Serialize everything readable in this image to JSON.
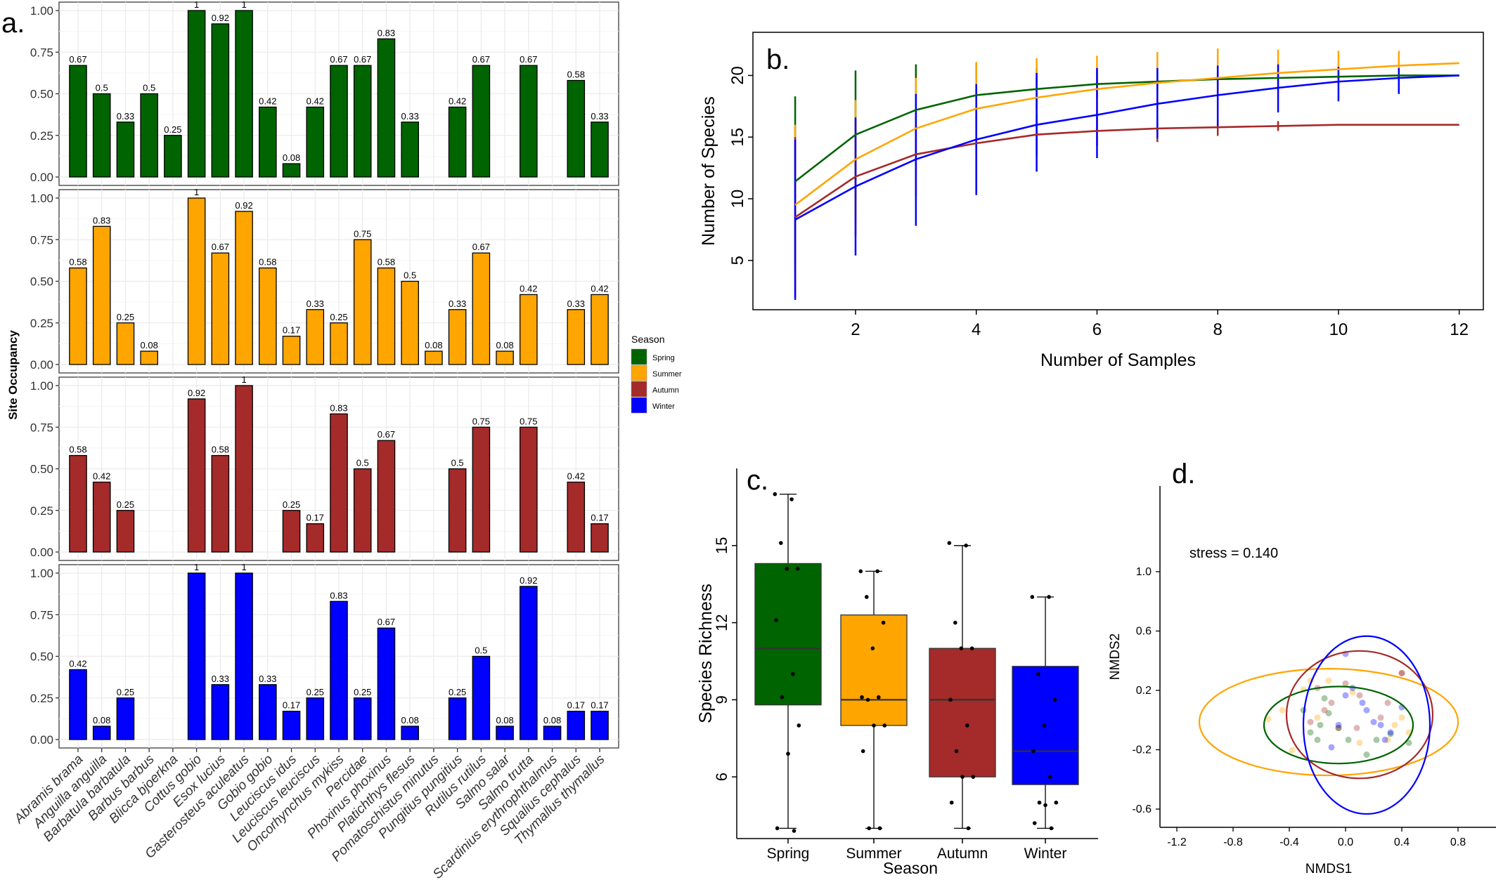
{
  "colors": {
    "spring": "#006400",
    "summer": "#FFA500",
    "autumn": "#A52A2A",
    "winter": "#0000FF",
    "panel_border": "#555555",
    "grid": "#ebebeb"
  },
  "chart_data": [
    {
      "type": "bar",
      "panel_label": "a.",
      "ylabel": "Site Occupancy",
      "ylim": [
        0,
        1
      ],
      "yticks": [
        "0.00",
        "0.25",
        "0.50",
        "0.75",
        "1.00"
      ],
      "categories": [
        "Abramis brama",
        "Anguilla anguilla",
        "Barbatula barbatula",
        "Barbus barbus",
        "Blicca bjoerkna",
        "Cottus gobio",
        "Esox lucius",
        "Gasterosteus aculeatus",
        "Gobio gobio",
        "Leuciscus idus",
        "Leuciscus leuciscus",
        "Oncorhynchus mykiss",
        "Percidae",
        "Phoxinus phoxinus",
        "Platichthys flesus",
        "Pomatoschistus minutus",
        "Pungitius pungitius",
        "Rutilus rutilus",
        "Salmo salar",
        "Salmo trutta",
        "Scardinius erythrophthalmus",
        "Squalius cephalus",
        "Thymallus thymallus"
      ],
      "legend_title": "Season",
      "legend": [
        "Spring",
        "Summer",
        "Autumn",
        "Winter"
      ],
      "legend_position": "right",
      "grid": true,
      "series": [
        {
          "name": "Spring",
          "values": [
            0.67,
            0.5,
            0.33,
            0.5,
            0.25,
            1,
            0.92,
            1,
            0.42,
            0.08,
            0.42,
            0.67,
            0.67,
            0.83,
            0.33,
            null,
            0.42,
            0.67,
            null,
            0.67,
            null,
            0.58,
            0.33
          ],
          "labels": [
            "0.67",
            "0.5",
            "0.33",
            "0.5",
            "0.25",
            "1",
            "0.92",
            "1",
            "0.42",
            "0.08",
            "0.42",
            "0.67",
            "0.67",
            "0.83",
            "0.33",
            "",
            "0.42",
            "0.67",
            "",
            "0.67",
            "",
            "0.58",
            "0.33"
          ]
        },
        {
          "name": "Summer",
          "values": [
            0.58,
            0.83,
            0.25,
            0.08,
            null,
            1,
            0.67,
            0.92,
            0.58,
            0.17,
            0.33,
            0.25,
            0.75,
            0.58,
            0.5,
            0.08,
            0.33,
            0.67,
            0.08,
            0.42,
            null,
            0.33,
            0.42
          ],
          "labels": [
            "0.58",
            "0.83",
            "0.25",
            "0.08",
            "",
            "1",
            "0.67",
            "0.92",
            "0.58",
            "0.17",
            "0.33",
            "0.25",
            "0.75",
            "0.58",
            "0.5",
            "0.08",
            "0.33",
            "0.67",
            "0.08",
            "0.42",
            "",
            "0.33",
            "0.42"
          ]
        },
        {
          "name": "Autumn",
          "values": [
            0.58,
            0.42,
            0.25,
            null,
            null,
            0.92,
            0.58,
            1,
            null,
            0.25,
            0.17,
            0.83,
            0.5,
            0.67,
            null,
            null,
            0.5,
            0.75,
            null,
            0.75,
            null,
            0.42,
            0.17
          ],
          "labels": [
            "0.58",
            "0.42",
            "0.25",
            "",
            "",
            "0.92",
            "0.58",
            "1",
            "",
            "0.25",
            "0.17",
            "0.83",
            "0.5",
            "0.67",
            "",
            "",
            "0.5",
            "0.75",
            "",
            "0.75",
            "",
            "0.42",
            "0.17"
          ]
        },
        {
          "name": "Winter",
          "values": [
            0.42,
            0.08,
            0.25,
            null,
            null,
            1,
            0.33,
            1,
            0.33,
            0.17,
            0.25,
            0.83,
            0.25,
            0.67,
            0.08,
            null,
            0.25,
            0.5,
            0.08,
            0.92,
            0.08,
            0.17,
            0.17
          ],
          "labels": [
            "0.42",
            "0.08",
            "0.25",
            "",
            "",
            "1",
            "0.33",
            "1",
            "0.33",
            "0.17",
            "0.25",
            "0.83",
            "0.25",
            "0.67",
            "0.08",
            "",
            "0.25",
            "0.5",
            "0.08",
            "0.92",
            "0.08",
            "0.17",
            "0.17"
          ]
        }
      ]
    },
    {
      "type": "line",
      "panel_label": "b.",
      "xlabel": "Number of Samples",
      "ylabel": "Number of Species",
      "xlim": [
        0.3,
        12.4
      ],
      "ylim": [
        1.0,
        23.5
      ],
      "xticks": [
        2,
        4,
        6,
        8,
        10,
        12
      ],
      "yticks": [
        5,
        10,
        15,
        20
      ],
      "x": [
        1,
        2,
        3,
        4,
        5,
        6,
        7,
        8,
        9,
        10,
        11,
        12
      ],
      "series": [
        {
          "name": "Spring",
          "values": [
            11.4,
            15.2,
            17.2,
            18.4,
            18.9,
            19.3,
            19.5,
            19.7,
            19.8,
            19.9,
            20.0,
            20.0
          ],
          "lower": [
            4.5,
            10.0,
            13.5,
            15.8,
            17.2,
            18.2,
            18.8,
            19.3,
            19.6,
            19.8,
            19.9,
            20.0
          ],
          "upper": [
            18.3,
            20.4,
            20.9,
            21.0,
            20.6,
            20.4,
            20.2,
            20.1,
            20.0,
            20.0,
            20.0,
            20.0
          ]
        },
        {
          "name": "Summer",
          "values": [
            9.5,
            13.2,
            15.7,
            17.3,
            18.2,
            18.9,
            19.4,
            19.8,
            20.2,
            20.5,
            20.8,
            21.0
          ],
          "lower": [
            3.0,
            8.5,
            11.5,
            13.8,
            15.5,
            16.6,
            17.4,
            18.0,
            18.8,
            19.3,
            19.8,
            21.0
          ],
          "upper": [
            16.0,
            18.0,
            19.8,
            21.1,
            21.4,
            21.6,
            21.9,
            22.2,
            22.1,
            22.0,
            22.0,
            21.0
          ]
        },
        {
          "name": "Autumn",
          "values": [
            8.5,
            11.8,
            13.6,
            14.5,
            15.2,
            15.5,
            15.7,
            15.8,
            15.9,
            16.0,
            16.0,
            16.0
          ],
          "lower": [
            2.0,
            7.0,
            10.2,
            12.0,
            13.5,
            14.3,
            14.6,
            15.1,
            15.5,
            16.0,
            16.0,
            16.0
          ],
          "upper": [
            15.0,
            16.4,
            17.0,
            17.0,
            16.8,
            16.6,
            16.5,
            16.4,
            16.3,
            16.0,
            16.0,
            16.0
          ]
        },
        {
          "name": "Winter",
          "values": [
            8.3,
            11.0,
            13.2,
            14.8,
            16.0,
            16.8,
            17.7,
            18.4,
            19.0,
            19.5,
            19.8,
            20.0
          ],
          "lower": [
            1.8,
            5.4,
            7.8,
            10.3,
            12.2,
            13.3,
            14.9,
            15.9,
            17.0,
            17.9,
            18.5,
            20.0
          ],
          "upper": [
            14.8,
            16.6,
            18.5,
            19.3,
            20.2,
            20.6,
            20.6,
            20.8,
            20.9,
            20.7,
            20.6,
            20.0
          ]
        }
      ]
    },
    {
      "type": "box",
      "panel_label": "c.",
      "xlabel": "Season",
      "ylabel": "Species Richness",
      "ylim": [
        3.6,
        18.0
      ],
      "yticks": [
        6,
        9,
        12,
        15
      ],
      "categories": [
        "Spring",
        "Summer",
        "Autumn",
        "Winter"
      ],
      "boxes": [
        {
          "name": "Spring",
          "min": 4,
          "q1": 8.8,
          "median": 11,
          "q3": 14.3,
          "max": 17,
          "points": [
            17,
            16.8,
            15.1,
            14.1,
            14.1,
            12.1,
            10,
            9.1,
            8,
            6.9,
            4,
            3.9
          ]
        },
        {
          "name": "Summer",
          "min": 4,
          "q1": 8,
          "median": 9,
          "q3": 12.3,
          "max": 14,
          "points": [
            14,
            14,
            13,
            12,
            11,
            9.1,
            9.1,
            9,
            8,
            8,
            7,
            4,
            4
          ]
        },
        {
          "name": "Autumn",
          "min": 4,
          "q1": 6,
          "median": 9,
          "q3": 11,
          "max": 15,
          "points": [
            15.1,
            15,
            12,
            11,
            11,
            9,
            8,
            7,
            6,
            6,
            5,
            4
          ]
        },
        {
          "name": "Winter",
          "min": 4,
          "q1": 5.7,
          "median": 7,
          "q3": 10.3,
          "max": 13,
          "points": [
            13,
            13,
            10,
            9,
            8,
            7,
            6,
            5,
            5,
            4.9,
            4.2,
            4
          ]
        }
      ]
    },
    {
      "type": "scatter",
      "panel_label": "d.",
      "xlabel": "NMDS1",
      "ylabel": "NMDS2",
      "annotation": "stress = 0.140",
      "xlim": [
        -1.3,
        1.0
      ],
      "ylim": [
        -0.72,
        1.07
      ],
      "xticks": [
        "-1.2",
        "-0.8",
        "-0.4",
        "0.0",
        "0.4",
        "0.8"
      ],
      "yticks": [
        "-0.6",
        "-0.2",
        "0.2",
        "0.6",
        "1.0"
      ],
      "points": [
        {
          "season": "Spring",
          "x": -0.25,
          "y": -0.15
        },
        {
          "season": "Spring",
          "x": -0.18,
          "y": -0.1
        },
        {
          "season": "Spring",
          "x": -0.12,
          "y": -0.02
        },
        {
          "season": "Spring",
          "x": -0.05,
          "y": -0.12
        },
        {
          "season": "Spring",
          "x": -0.3,
          "y": 0.0
        },
        {
          "season": "Spring",
          "x": -0.15,
          "y": 0.08
        },
        {
          "season": "Spring",
          "x": 0.02,
          "y": -0.2
        },
        {
          "season": "Spring",
          "x": 0.22,
          "y": -0.2
        },
        {
          "season": "Spring",
          "x": 0.32,
          "y": -0.16
        },
        {
          "season": "Spring",
          "x": -0.2,
          "y": -0.2
        },
        {
          "season": "Spring",
          "x": 0.15,
          "y": -0.3
        },
        {
          "season": "Spring",
          "x": 0.45,
          "y": -0.22
        },
        {
          "season": "Summer",
          "x": -0.55,
          "y": -0.06
        },
        {
          "season": "Summer",
          "x": -0.45,
          "y": 0.0
        },
        {
          "season": "Summer",
          "x": -0.38,
          "y": -0.27
        },
        {
          "season": "Summer",
          "x": -0.3,
          "y": 0.14
        },
        {
          "season": "Summer",
          "x": -0.25,
          "y": 0.2
        },
        {
          "season": "Summer",
          "x": -0.12,
          "y": 0.2
        },
        {
          "season": "Summer",
          "x": 0.05,
          "y": 0.12
        },
        {
          "season": "Summer",
          "x": 0.3,
          "y": -0.2
        },
        {
          "season": "Summer",
          "x": 0.35,
          "y": -0.1
        },
        {
          "season": "Summer",
          "x": 0.45,
          "y": -0.15
        },
        {
          "season": "Summer",
          "x": -0.2,
          "y": -0.05
        },
        {
          "season": "Summer",
          "x": 0.1,
          "y": -0.22
        },
        {
          "season": "Summer",
          "x": 0.4,
          "y": -0.05
        },
        {
          "season": "Autumn",
          "x": -0.2,
          "y": 0.15
        },
        {
          "season": "Autumn",
          "x": -0.1,
          "y": 0.05
        },
        {
          "season": "Autumn",
          "x": 0.0,
          "y": 0.18
        },
        {
          "season": "Autumn",
          "x": 0.1,
          "y": 0.1
        },
        {
          "season": "Autumn",
          "x": -0.25,
          "y": -0.08
        },
        {
          "season": "Autumn",
          "x": 0.08,
          "y": -0.12
        },
        {
          "season": "Autumn",
          "x": 0.3,
          "y": 0.05
        },
        {
          "season": "Autumn",
          "x": 0.4,
          "y": 0.25
        },
        {
          "season": "Autumn",
          "x": -0.05,
          "y": -0.12
        },
        {
          "season": "Autumn",
          "x": 0.25,
          "y": -0.05
        },
        {
          "season": "Autumn",
          "x": -0.15,
          "y": 0.0
        },
        {
          "season": "Autumn",
          "x": 0.4,
          "y": 0.25
        },
        {
          "season": "Winter",
          "x": 0.0,
          "y": 0.38
        },
        {
          "season": "Winter",
          "x": 0.0,
          "y": 0.1
        },
        {
          "season": "Winter",
          "x": 0.15,
          "y": 0.0
        },
        {
          "season": "Winter",
          "x": 0.25,
          "y": -0.1
        },
        {
          "season": "Winter",
          "x": 0.32,
          "y": -0.15
        },
        {
          "season": "Winter",
          "x": -0.1,
          "y": -0.25
        },
        {
          "season": "Winter",
          "x": 0.4,
          "y": 0.02
        },
        {
          "season": "Winter",
          "x": -0.05,
          "y": -0.1
        },
        {
          "season": "Winter",
          "x": 0.12,
          "y": 0.05
        },
        {
          "season": "Winter",
          "x": 0.28,
          "y": -0.2
        },
        {
          "season": "Winter",
          "x": 0.05,
          "y": 0.15
        },
        {
          "season": "Winter",
          "x": 0.2,
          "y": -0.08
        }
      ],
      "ellipses": [
        {
          "season": "Spring",
          "cx": -0.05,
          "cy": -0.1,
          "rx": 0.53,
          "ry": 0.26
        },
        {
          "season": "Summer",
          "cx": -0.12,
          "cy": -0.08,
          "rx": 0.92,
          "ry": 0.36
        },
        {
          "season": "Autumn",
          "cx": 0.1,
          "cy": -0.03,
          "rx": 0.52,
          "ry": 0.43
        },
        {
          "season": "Winter",
          "cx": 0.15,
          "cy": -0.1,
          "rx": 0.45,
          "ry": 0.6
        }
      ]
    }
  ]
}
